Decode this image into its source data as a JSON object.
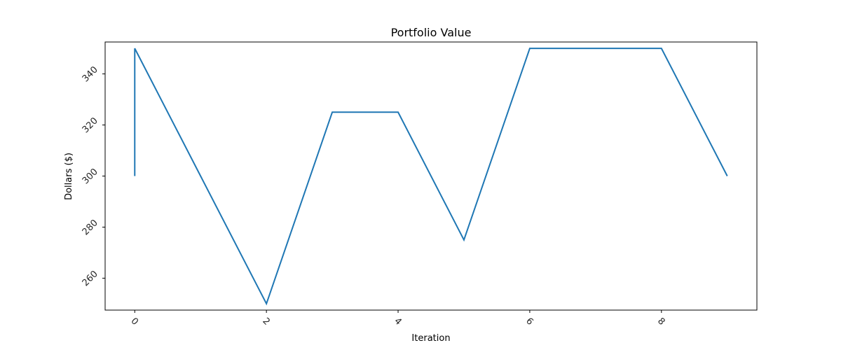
{
  "chart_data": {
    "type": "line",
    "title": "Portfolio Value",
    "xlabel": "Iteration",
    "ylabel": "Dollars ($)",
    "xlim": [
      -0.45,
      9.45
    ],
    "ylim": [
      247.5,
      352.5
    ],
    "xticks": [
      0,
      2,
      4,
      6,
      8
    ],
    "yticks": [
      260,
      280,
      300,
      320,
      340
    ],
    "xtick_rotation": 45,
    "ytick_rotation": 45,
    "grid": false,
    "series": [
      {
        "color": "#1f77b4",
        "x": [
          0,
          0,
          1,
          2,
          3,
          4,
          5,
          6,
          7,
          8,
          9
        ],
        "y": [
          300,
          350,
          300,
          250,
          325,
          325,
          275,
          350,
          350,
          350,
          300
        ]
      }
    ]
  }
}
